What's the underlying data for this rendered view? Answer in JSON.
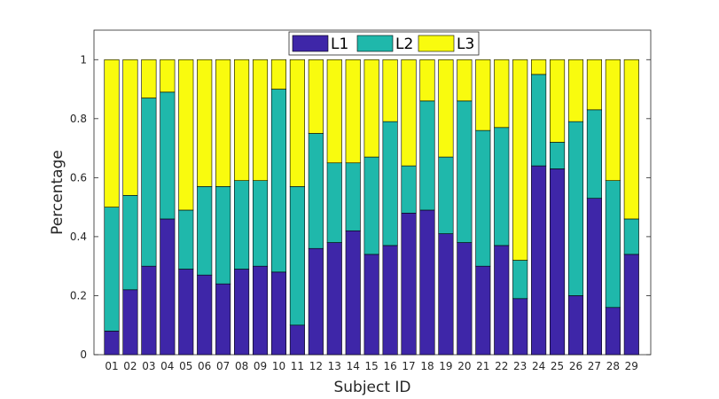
{
  "chart_data": {
    "type": "bar",
    "stacked": true,
    "xlabel": "Subject ID",
    "ylabel": "Percentage",
    "ylim": [
      0,
      1.1
    ],
    "yticks": [
      "0",
      "0.2",
      "0.4",
      "0.6",
      "0.8",
      "1"
    ],
    "legend_position": "top",
    "categories": [
      "01",
      "02",
      "03",
      "04",
      "05",
      "06",
      "07",
      "08",
      "09",
      "10",
      "11",
      "12",
      "13",
      "14",
      "15",
      "16",
      "17",
      "18",
      "19",
      "20",
      "21",
      "22",
      "23",
      "24",
      "25",
      "26",
      "27",
      "28",
      "29"
    ],
    "series": [
      {
        "name": "L1",
        "color": "#3e26a8",
        "values": [
          0.08,
          0.22,
          0.3,
          0.46,
          0.29,
          0.27,
          0.24,
          0.29,
          0.3,
          0.28,
          0.1,
          0.36,
          0.38,
          0.42,
          0.34,
          0.37,
          0.48,
          0.49,
          0.41,
          0.38,
          0.3,
          0.37,
          0.19,
          0.64,
          0.63,
          0.2,
          0.53,
          0.16,
          0.34
        ]
      },
      {
        "name": "L2",
        "color": "#1fb8ab",
        "values": [
          0.42,
          0.32,
          0.57,
          0.43,
          0.2,
          0.3,
          0.33,
          0.3,
          0.29,
          0.62,
          0.47,
          0.39,
          0.27,
          0.23,
          0.33,
          0.42,
          0.16,
          0.37,
          0.26,
          0.48,
          0.46,
          0.4,
          0.13,
          0.31,
          0.09,
          0.59,
          0.3,
          0.43,
          0.12
        ]
      },
      {
        "name": "L3",
        "color": "#f9fb0e",
        "values": [
          0.5,
          0.46,
          0.13,
          0.11,
          0.51,
          0.43,
          0.43,
          0.41,
          0.41,
          0.1,
          0.43,
          0.25,
          0.35,
          0.35,
          0.33,
          0.21,
          0.36,
          0.14,
          0.33,
          0.14,
          0.24,
          0.23,
          0.68,
          0.05,
          0.28,
          0.21,
          0.17,
          0.41,
          0.54
        ]
      }
    ]
  }
}
